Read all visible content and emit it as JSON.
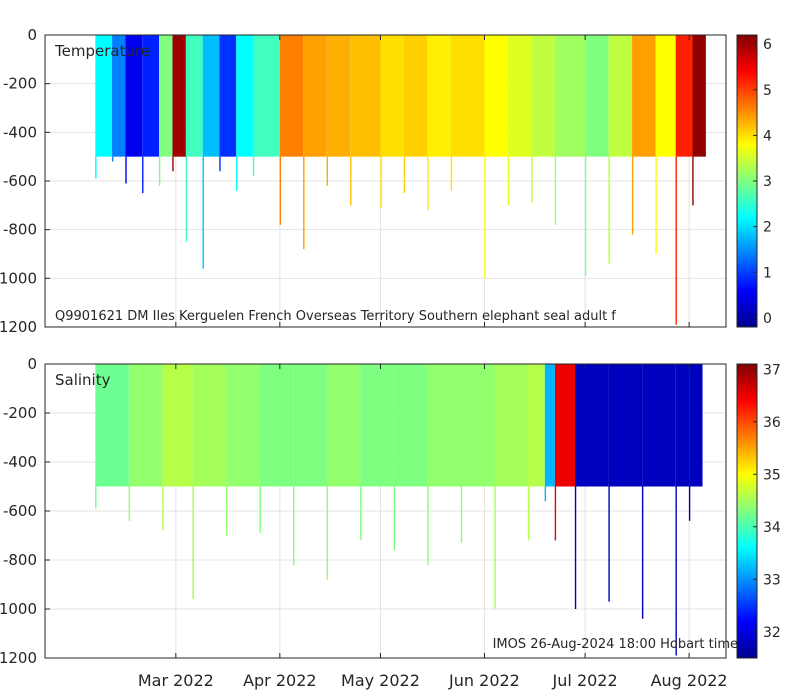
{
  "chart_data": [
    {
      "type": "heatmap",
      "title": "Temperature",
      "xlabel": "",
      "ylabel": "",
      "annotation": "Q9901621 DM Iles Kerguelen French Overseas Territory Southern elephant seal adult f",
      "ylim": [
        -1200,
        0
      ],
      "y_ticks": [
        0,
        -200,
        -400,
        -600,
        -800,
        -1000,
        -1200
      ],
      "y_tick_labels": [
        "0",
        "-200",
        "-400",
        "-600",
        "-800",
        "-1000",
        "-1200"
      ],
      "x_ticks": [
        "Mar 2022",
        "Apr 2022",
        "May 2022",
        "Jun 2022",
        "Jul 2022",
        "Aug 2022"
      ],
      "x_tick_labels_shown": false,
      "colorbar": {
        "min": -0.2,
        "max": 6.2,
        "ticks": [
          0,
          1,
          2,
          3,
          4,
          5,
          6
        ],
        "colormap": "jet"
      },
      "profiles": [
        {
          "time": "2022-02-05",
          "value": 2.2,
          "max_depth": 590
        },
        {
          "time": "2022-02-10",
          "value": 1.4,
          "max_depth": 520
        },
        {
          "time": "2022-02-14",
          "value": 0.5,
          "max_depth": 610
        },
        {
          "time": "2022-02-19",
          "value": 0.8,
          "max_depth": 650
        },
        {
          "time": "2022-02-24",
          "value": 3.0,
          "max_depth": 620
        },
        {
          "time": "2022-02-28",
          "value": 6.0,
          "max_depth": 560
        },
        {
          "time": "2022-03-04",
          "value": 2.6,
          "max_depth": 850
        },
        {
          "time": "2022-03-09",
          "value": 1.8,
          "max_depth": 960
        },
        {
          "time": "2022-03-14",
          "value": 0.9,
          "max_depth": 560
        },
        {
          "time": "2022-03-19",
          "value": 2.2,
          "max_depth": 640
        },
        {
          "time": "2022-03-24",
          "value": 2.6,
          "max_depth": 580
        },
        {
          "time": "2022-04-01",
          "value": 4.6,
          "max_depth": 780
        },
        {
          "time": "2022-04-08",
          "value": 4.4,
          "max_depth": 880
        },
        {
          "time": "2022-04-15",
          "value": 4.3,
          "max_depth": 620
        },
        {
          "time": "2022-04-22",
          "value": 4.2,
          "max_depth": 700
        },
        {
          "time": "2022-05-01",
          "value": 4.0,
          "max_depth": 710
        },
        {
          "time": "2022-05-08",
          "value": 4.1,
          "max_depth": 650
        },
        {
          "time": "2022-05-15",
          "value": 3.9,
          "max_depth": 720
        },
        {
          "time": "2022-05-22",
          "value": 4.0,
          "max_depth": 640
        },
        {
          "time": "2022-06-01",
          "value": 3.8,
          "max_depth": 1000
        },
        {
          "time": "2022-06-08",
          "value": 3.6,
          "max_depth": 700
        },
        {
          "time": "2022-06-15",
          "value": 3.4,
          "max_depth": 690
        },
        {
          "time": "2022-06-22",
          "value": 3.2,
          "max_depth": 780
        },
        {
          "time": "2022-07-01",
          "value": 3.0,
          "max_depth": 990
        },
        {
          "time": "2022-07-08",
          "value": 3.4,
          "max_depth": 940
        },
        {
          "time": "2022-07-15",
          "value": 4.4,
          "max_depth": 820
        },
        {
          "time": "2022-07-22",
          "value": 3.8,
          "max_depth": 900
        },
        {
          "time": "2022-07-28",
          "value": 5.2,
          "max_depth": 1190
        },
        {
          "time": "2022-08-02",
          "value": 6.1,
          "max_depth": 700
        }
      ]
    },
    {
      "type": "heatmap",
      "title": "Salinity",
      "xlabel": "",
      "ylabel": "",
      "annotation": "IMOS 26-Aug-2024 18:00 Hobart time",
      "ylim": [
        -1200,
        0
      ],
      "y_ticks": [
        0,
        -200,
        -400,
        -600,
        -800,
        -1000,
        -1200
      ],
      "y_tick_labels": [
        "0",
        "-200",
        "-400",
        "-600",
        "-800",
        "-1000",
        "-1200"
      ],
      "x_ticks": [
        "Mar 2022",
        "Apr 2022",
        "May 2022",
        "Jun 2022",
        "Jul 2022",
        "Aug 2022"
      ],
      "x_tick_labels_shown": true,
      "colorbar": {
        "min": 31.5,
        "max": 37.1,
        "ticks": [
          32,
          33,
          34,
          35,
          36,
          37
        ],
        "colormap": "jet"
      },
      "profiles": [
        {
          "time": "2022-02-05",
          "value": 34.2,
          "max_depth": 590
        },
        {
          "time": "2022-02-15",
          "value": 34.4,
          "max_depth": 640
        },
        {
          "time": "2022-02-25",
          "value": 34.6,
          "max_depth": 680
        },
        {
          "time": "2022-03-06",
          "value": 34.5,
          "max_depth": 960
        },
        {
          "time": "2022-03-16",
          "value": 34.4,
          "max_depth": 700
        },
        {
          "time": "2022-03-26",
          "value": 34.3,
          "max_depth": 690
        },
        {
          "time": "2022-04-05",
          "value": 34.3,
          "max_depth": 820
        },
        {
          "time": "2022-04-15",
          "value": 34.4,
          "max_depth": 880
        },
        {
          "time": "2022-04-25",
          "value": 34.3,
          "max_depth": 720
        },
        {
          "time": "2022-05-05",
          "value": 34.3,
          "max_depth": 760
        },
        {
          "time": "2022-05-15",
          "value": 34.4,
          "max_depth": 820
        },
        {
          "time": "2022-05-25",
          "value": 34.4,
          "max_depth": 730
        },
        {
          "time": "2022-06-04",
          "value": 34.5,
          "max_depth": 1000
        },
        {
          "time": "2022-06-14",
          "value": 34.6,
          "max_depth": 720
        },
        {
          "time": "2022-06-19",
          "value": 33.2,
          "max_depth": 560
        },
        {
          "time": "2022-06-22",
          "value": 36.5,
          "max_depth": 720
        },
        {
          "time": "2022-06-28",
          "value": 31.8,
          "max_depth": 1000
        },
        {
          "time": "2022-07-08",
          "value": 31.8,
          "max_depth": 970
        },
        {
          "time": "2022-07-18",
          "value": 31.8,
          "max_depth": 1040
        },
        {
          "time": "2022-07-28",
          "value": 31.8,
          "max_depth": 1190
        },
        {
          "time": "2022-08-01",
          "value": 31.8,
          "max_depth": 640
        }
      ]
    }
  ]
}
